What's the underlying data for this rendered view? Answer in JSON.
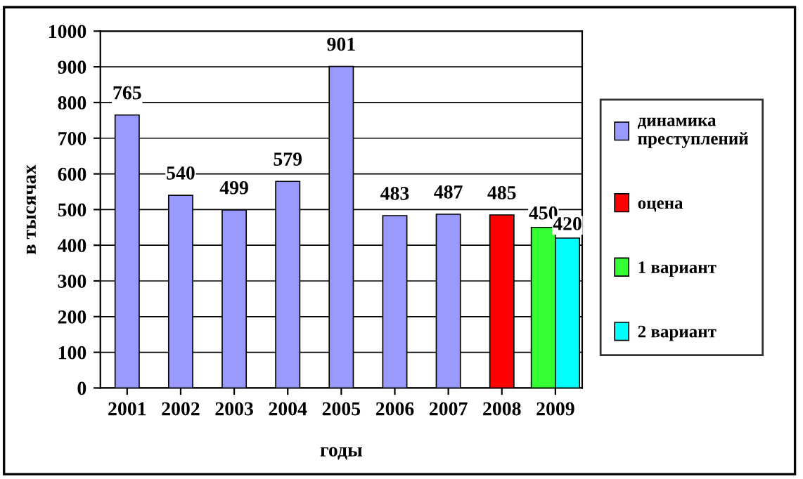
{
  "chart_data": {
    "type": "bar",
    "xlabel": "годы",
    "ylabel": "в тысячах",
    "categories": [
      "2001",
      "2002",
      "2003",
      "2004",
      "2005",
      "2006",
      "2007",
      "2008",
      "2009"
    ],
    "series": [
      {
        "name": "динамика преступлений",
        "color": "#9999ff",
        "values": [
          765,
          540,
          499,
          579,
          901,
          483,
          487,
          null,
          null
        ]
      },
      {
        "name": "оцена",
        "color": "#ff0000",
        "values": [
          null,
          null,
          null,
          null,
          null,
          null,
          null,
          485,
          null
        ]
      },
      {
        "name": "1 вариант",
        "color": "#33ff33",
        "values": [
          null,
          null,
          null,
          null,
          null,
          null,
          null,
          null,
          450
        ]
      },
      {
        "name": "2 вариант",
        "color": "#00ffff",
        "values": [
          null,
          null,
          null,
          null,
          null,
          null,
          null,
          null,
          420
        ]
      }
    ],
    "ylim": [
      0,
      1000
    ],
    "yticks": [
      0,
      100,
      200,
      300,
      400,
      500,
      600,
      700,
      800,
      900,
      1000
    ],
    "grid": "y",
    "legend": "right",
    "data_labels": true
  }
}
